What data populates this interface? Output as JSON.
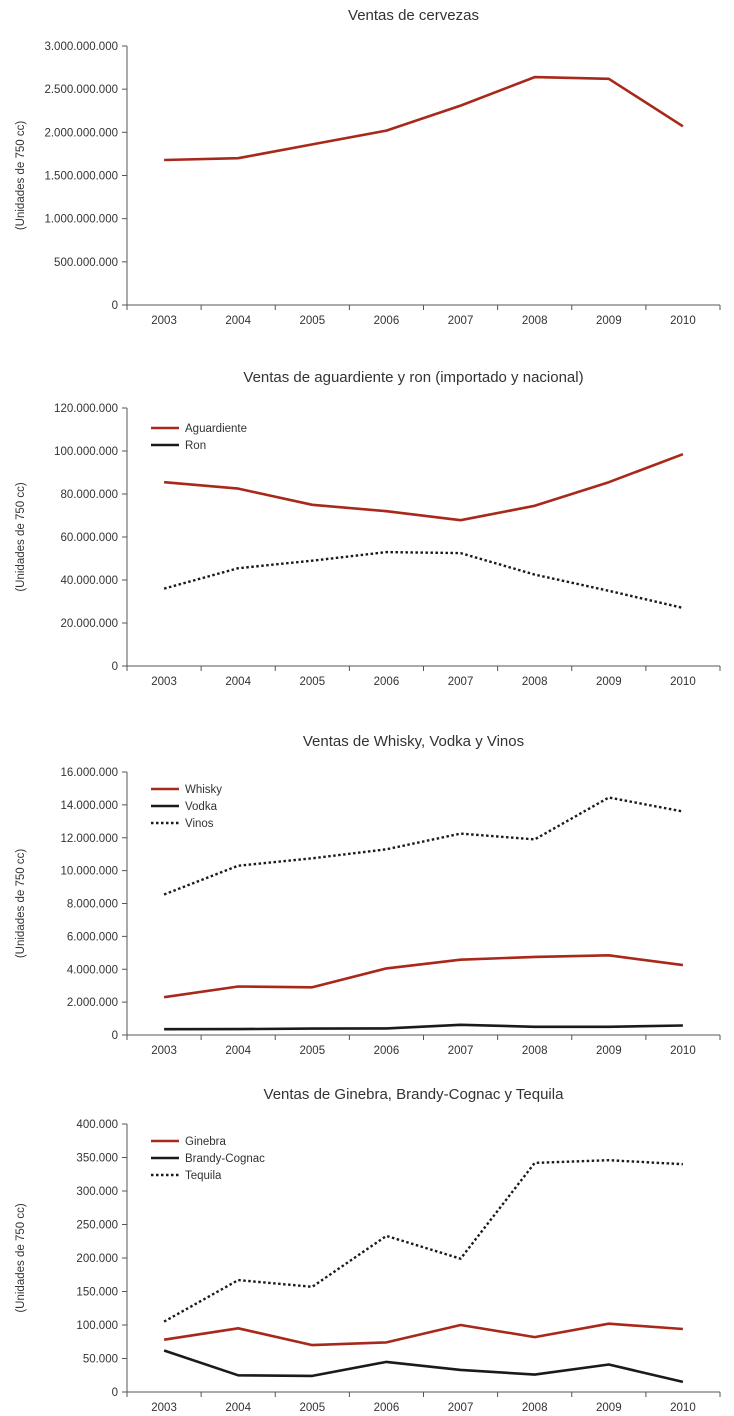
{
  "chart_data": [
    {
      "type": "line",
      "title": "Ventas de cervezas",
      "xlabel": "",
      "ylabel": "(Unidades de 750 cc)",
      "categories": [
        "2003",
        "2004",
        "2005",
        "2006",
        "2007",
        "2008",
        "2009",
        "2010"
      ],
      "ylim": [
        0,
        3000000000
      ],
      "yticks": [
        "0",
        "500.000.000",
        "1.000.000.000",
        "1.500.000.000",
        "2.000.000.000",
        "2.500.000.000",
        "3.000.000.000"
      ],
      "legend": "none",
      "series": [
        {
          "name": "",
          "color": "#a8281a",
          "style": "solid",
          "values": [
            1680000000,
            1700000000,
            1860000000,
            2020000000,
            2310000000,
            2640000000,
            2620000000,
            2070000000
          ]
        }
      ]
    },
    {
      "type": "line",
      "title": "Ventas de aguardiente y ron (importado y nacional)",
      "xlabel": "",
      "ylabel": "(Unidades de 750 cc)",
      "categories": [
        "2003",
        "2004",
        "2005",
        "2006",
        "2007",
        "2008",
        "2009",
        "2010"
      ],
      "ylim": [
        0,
        120000000
      ],
      "yticks": [
        "0",
        "20.000.000",
        "40.000.000",
        "60.000.000",
        "80.000.000",
        "100.000.000",
        "120.000.000"
      ],
      "legend": "top-left",
      "series": [
        {
          "name": "Aguardiente",
          "color": "#a8281a",
          "style": "solid",
          "values": [
            85500000,
            82500000,
            75000000,
            72000000,
            67800000,
            74500000,
            85500000,
            98500000
          ]
        },
        {
          "name": "Ron",
          "color": "#1a1a1a",
          "style": "dotted",
          "legend_style": "solid",
          "values": [
            36000000,
            45500000,
            49000000,
            53000000,
            52500000,
            42500000,
            35000000,
            27000000
          ]
        }
      ]
    },
    {
      "type": "line",
      "title": "Ventas de Whisky, Vodka y Vinos",
      "xlabel": "",
      "ylabel": "(Unidades de 750 cc)",
      "categories": [
        "2003",
        "2004",
        "2005",
        "2006",
        "2007",
        "2008",
        "2009",
        "2010"
      ],
      "ylim": [
        0,
        16000000
      ],
      "yticks": [
        "0",
        "2.000.000",
        "4.000.000",
        "6.000.000",
        "8.000.000",
        "10.000.000",
        "12.000.000",
        "14.000.000",
        "16.000.000"
      ],
      "legend": "top-left",
      "series": [
        {
          "name": "Whisky",
          "color": "#a8281a",
          "style": "solid",
          "values": [
            2300000,
            2950000,
            2900000,
            4050000,
            4580000,
            4750000,
            4850000,
            4250000
          ]
        },
        {
          "name": "Vodka",
          "color": "#1a1a1a",
          "style": "solid",
          "values": [
            350000,
            360000,
            390000,
            400000,
            620000,
            500000,
            500000,
            580000
          ]
        },
        {
          "name": "Vinos",
          "color": "#1a1a1a",
          "style": "dotted",
          "values": [
            8550000,
            10300000,
            10750000,
            11300000,
            12250000,
            11900000,
            14450000,
            13600000
          ]
        }
      ]
    },
    {
      "type": "line",
      "title": "Ventas de Ginebra, Brandy-Cognac y Tequila",
      "xlabel": "",
      "ylabel": "(Unidades de 750 cc)",
      "categories": [
        "2003",
        "2004",
        "2005",
        "2006",
        "2007",
        "2008",
        "2009",
        "2010"
      ],
      "ylim": [
        0,
        400000
      ],
      "yticks": [
        "0",
        "50.000",
        "100.000",
        "150.000",
        "200.000",
        "250.000",
        "300.000",
        "350.000",
        "400.000"
      ],
      "legend": "top-left",
      "series": [
        {
          "name": "Ginebra",
          "color": "#a8281a",
          "style": "solid",
          "values": [
            78000,
            95000,
            70000,
            74000,
            100000,
            82000,
            102000,
            94000
          ]
        },
        {
          "name": "Brandy-Cognac",
          "color": "#1a1a1a",
          "style": "solid",
          "values": [
            62000,
            25000,
            24000,
            45000,
            33000,
            26000,
            41000,
            15000
          ]
        },
        {
          "name": "Tequila",
          "color": "#1a1a1a",
          "style": "dotted",
          "values": [
            105000,
            167000,
            157000,
            233000,
            199000,
            342000,
            346000,
            340000
          ]
        }
      ]
    }
  ]
}
